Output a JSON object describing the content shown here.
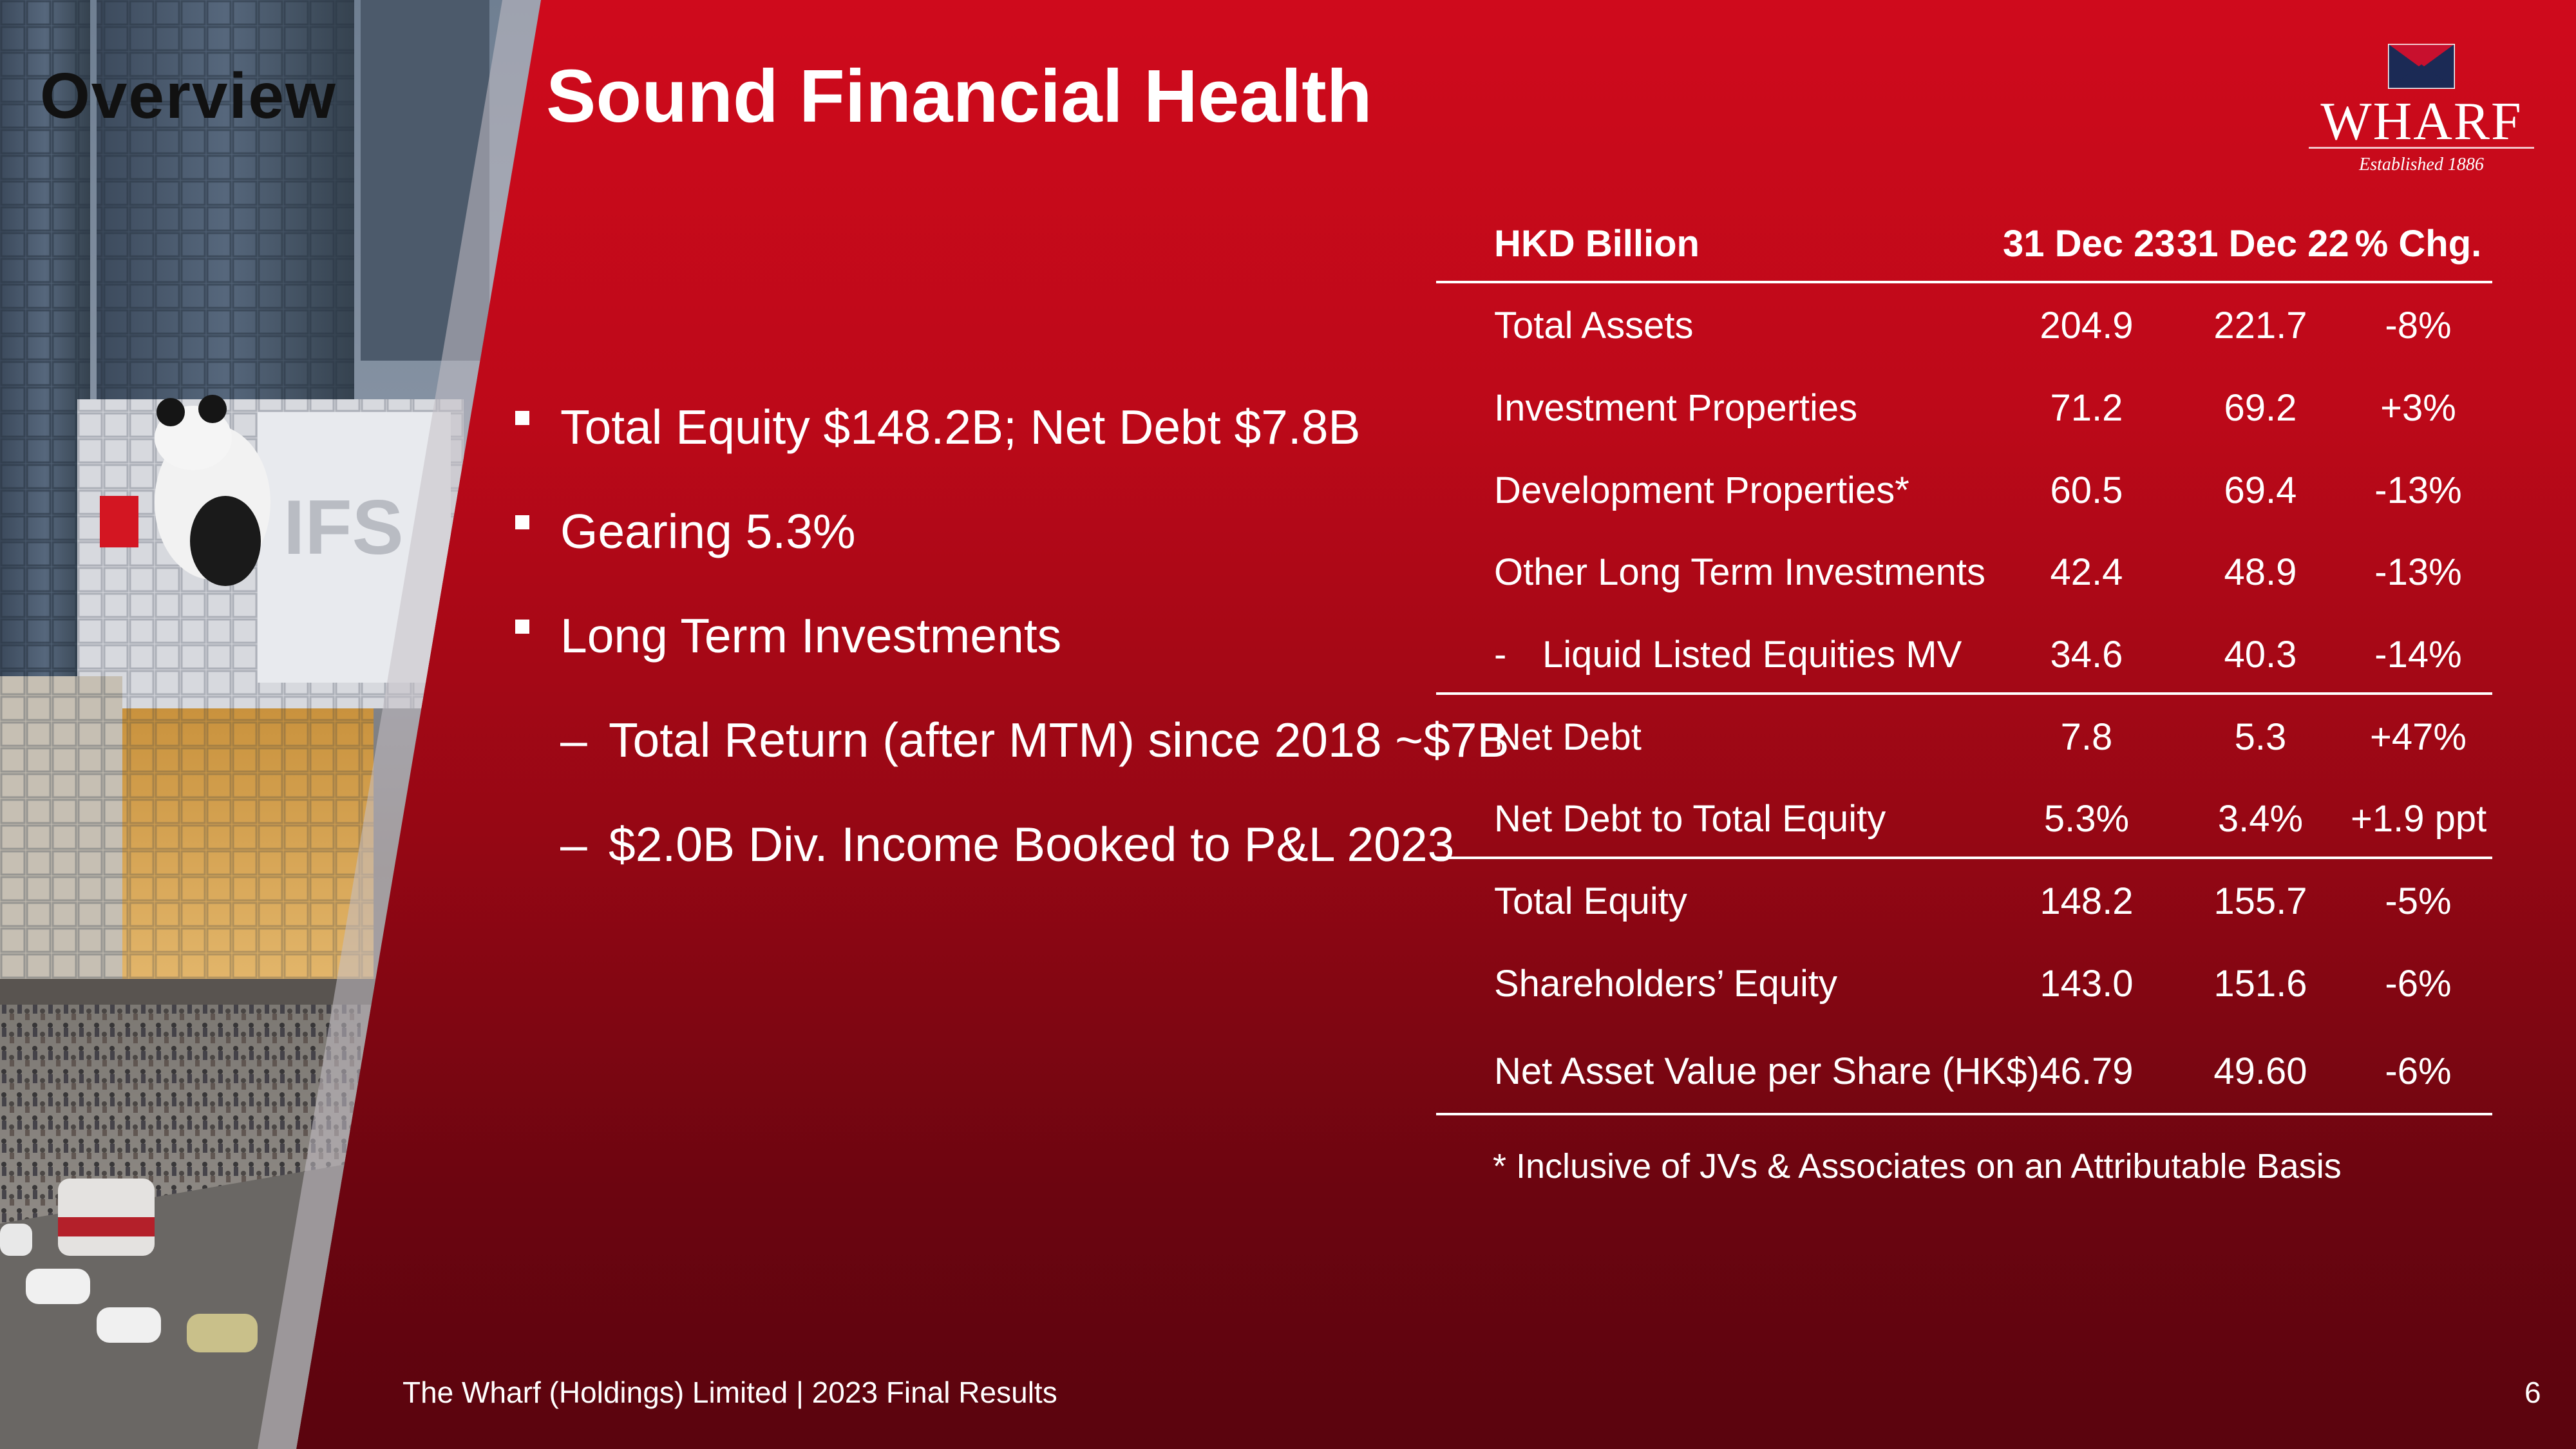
{
  "section_label": "Overview",
  "title": "Sound Financial Health",
  "brand": {
    "name": "WHARF",
    "tagline": "Established 1886"
  },
  "photo": {
    "sign_text": "IFS"
  },
  "bullets": [
    {
      "text": "Total Equity $148.2B; Net Debt $7.8B",
      "level": 1
    },
    {
      "text": "Gearing 5.3%",
      "level": 1
    },
    {
      "text": "Long Term Investments",
      "level": 1
    },
    {
      "text": "Total Return (after MTM) since 2018 ~$7B",
      "level": 2,
      "marker": "–"
    },
    {
      "text": "$2.0B Div. Income Booked to P&L 2023",
      "level": 2,
      "marker": "–"
    }
  ],
  "table": {
    "headers": [
      "HKD Billion",
      "31 Dec 23",
      "31 Dec 22",
      "% Chg."
    ],
    "rows": [
      {
        "label": "Total Assets",
        "v23": "204.9",
        "v22": "221.7",
        "chg": "-8%"
      },
      {
        "label": "Investment Properties",
        "v23": "71.2",
        "v22": "69.2",
        "chg": "+3%"
      },
      {
        "label": "Development Properties*",
        "v23": "60.5",
        "v22": "69.4",
        "chg": "-13%"
      },
      {
        "label": "Other Long Term Investments",
        "v23": "42.4",
        "v22": "48.9",
        "chg": "-13%"
      },
      {
        "label": "Liquid Listed Equities MV",
        "prefix": "-",
        "v23": "34.6",
        "v22": "40.3",
        "chg": "-14%"
      },
      {
        "label": "Net Debt",
        "v23": "7.8",
        "v22": "5.3",
        "chg": "+47%"
      },
      {
        "label": "Net Debt to Total Equity",
        "v23": "5.3%",
        "v22": "3.4%",
        "chg": "+1.9 ppt"
      },
      {
        "label": "Total Equity",
        "v23": "148.2",
        "v22": "155.7",
        "chg": "-5%"
      },
      {
        "label": "Shareholders’ Equity",
        "v23": "143.0",
        "v22": "151.6",
        "chg": "-6%"
      },
      {
        "label": "Net Asset Value per Share (HK$)",
        "v23": "46.79",
        "v22": "49.60",
        "chg": "-6%"
      }
    ],
    "footnote": "* Inclusive of JVs & Associates on an Attributable Basis"
  },
  "footer": {
    "text": "The Wharf (Holdings) Limited | 2023 Final Results",
    "page": "6"
  },
  "colors": {
    "primary_red": "#cf0a1c",
    "dark_red": "#5a040e",
    "text": "#ffffff"
  }
}
